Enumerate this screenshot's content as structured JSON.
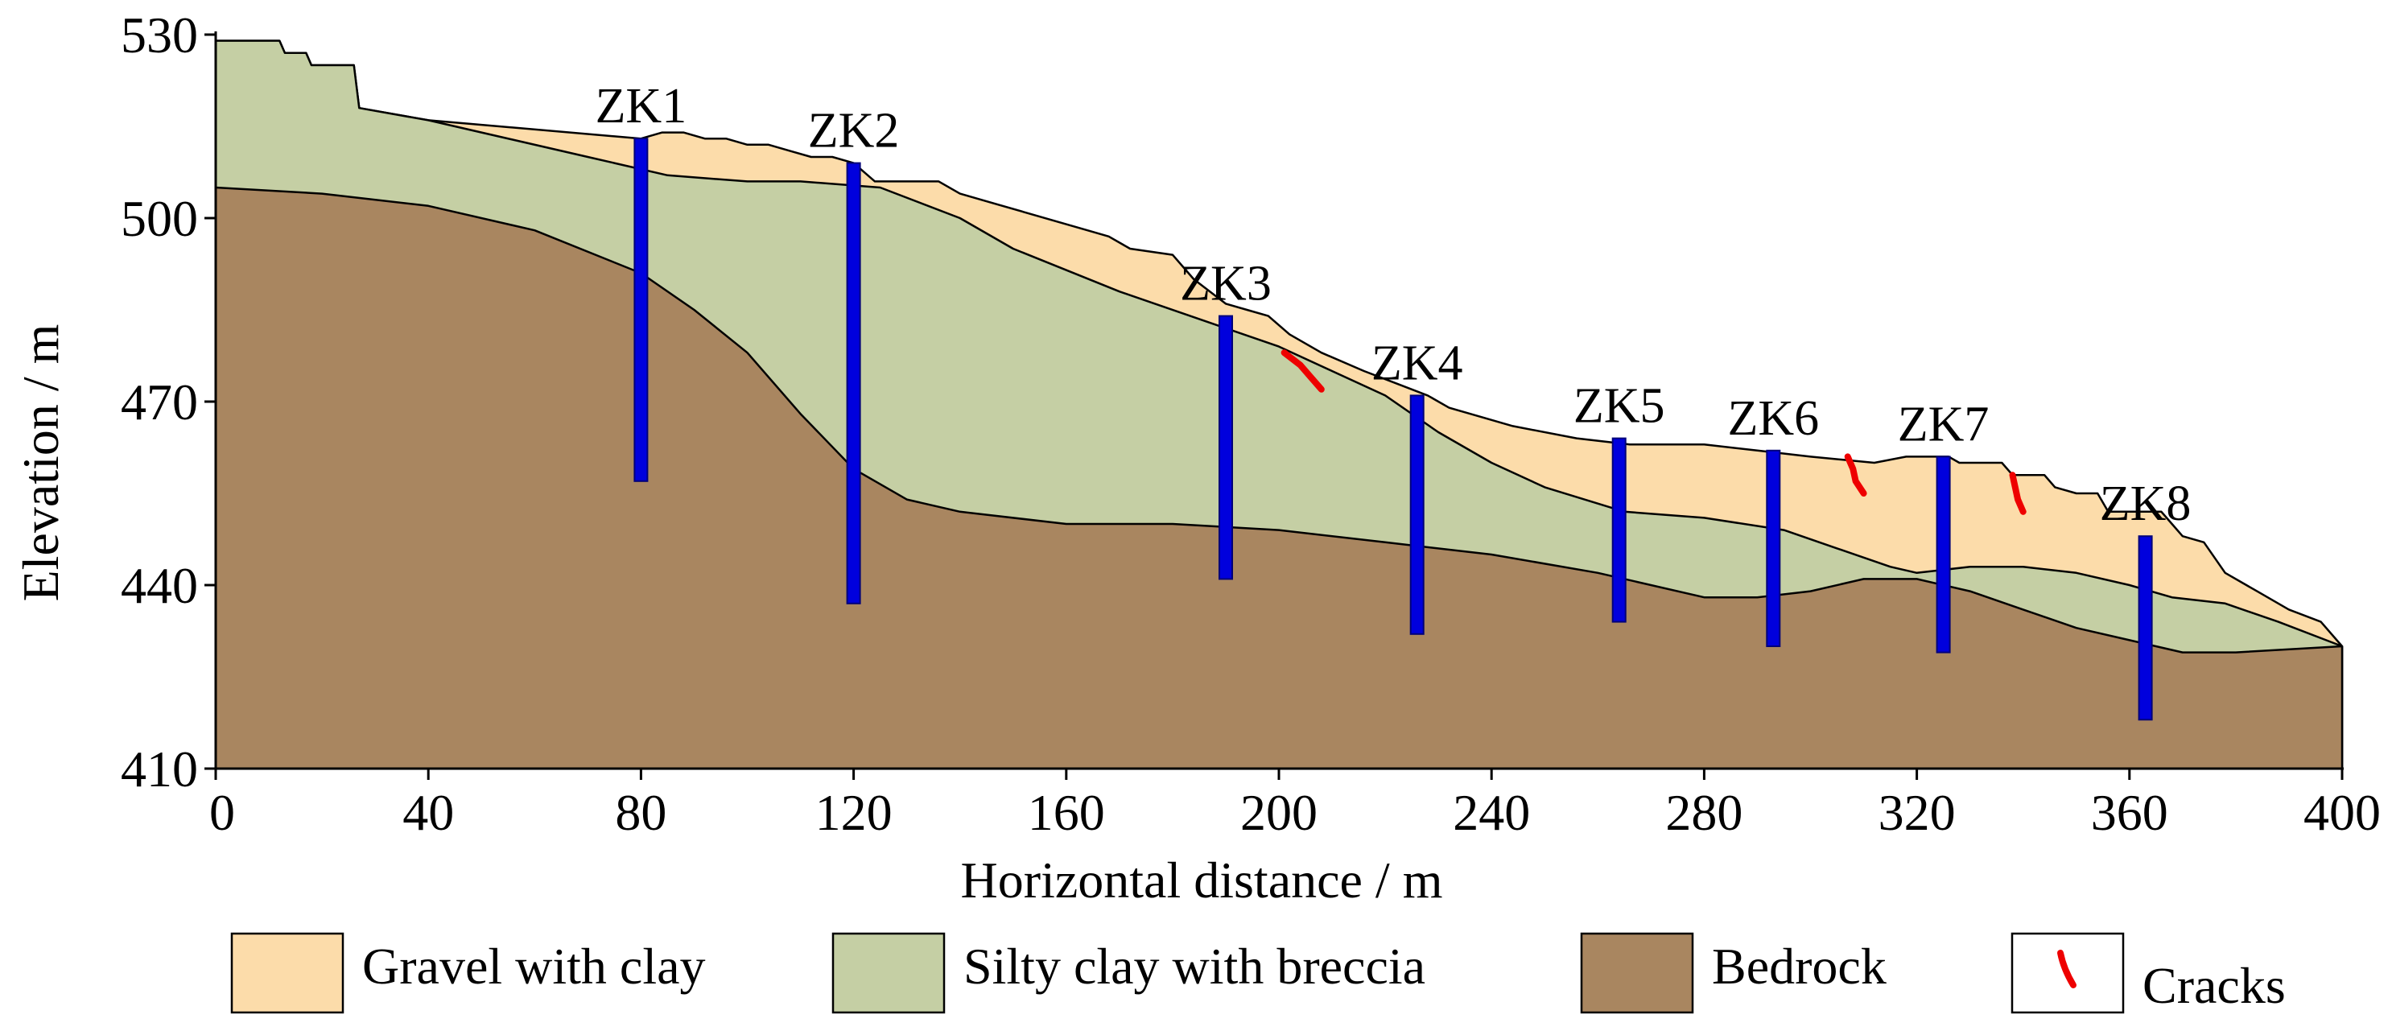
{
  "chart_data": {
    "type": "geological-cross-section",
    "xlabel": "Horizontal distance / m",
    "ylabel": "Elevation / m",
    "xlim": [
      0,
      400
    ],
    "ylim": [
      410,
      530
    ],
    "x_ticks": [
      0,
      40,
      80,
      120,
      160,
      200,
      240,
      280,
      320,
      360,
      400
    ],
    "y_ticks": [
      410,
      440,
      470,
      500,
      530
    ],
    "layers": [
      {
        "name": "Gravel with clay",
        "color": "#fcdcaa",
        "top": [
          [
            0,
            529
          ],
          [
            12,
            529
          ],
          [
            13,
            527
          ],
          [
            17,
            527
          ],
          [
            18,
            525
          ],
          [
            26,
            525
          ],
          [
            27,
            518
          ],
          [
            40,
            516
          ],
          [
            80,
            513
          ],
          [
            84,
            514
          ],
          [
            88,
            514
          ],
          [
            92,
            513
          ],
          [
            96,
            513
          ],
          [
            100,
            512
          ],
          [
            104,
            512
          ],
          [
            108,
            511
          ],
          [
            112,
            510
          ],
          [
            116,
            510
          ],
          [
            120,
            509
          ],
          [
            124,
            506
          ],
          [
            136,
            506
          ],
          [
            140,
            504
          ],
          [
            144,
            503
          ],
          [
            152,
            501
          ],
          [
            164,
            498
          ],
          [
            168,
            497
          ],
          [
            172,
            495
          ],
          [
            180,
            494
          ],
          [
            184,
            490
          ],
          [
            190,
            486
          ],
          [
            194,
            485
          ],
          [
            198,
            484
          ],
          [
            202,
            481
          ],
          [
            208,
            478
          ],
          [
            216,
            475
          ],
          [
            222,
            473
          ],
          [
            228,
            471
          ],
          [
            232,
            469
          ],
          [
            236,
            468
          ],
          [
            244,
            466
          ],
          [
            256,
            464
          ],
          [
            266,
            463
          ],
          [
            280,
            463
          ],
          [
            290,
            462
          ],
          [
            300,
            461
          ],
          [
            312,
            460
          ],
          [
            318,
            461
          ],
          [
            326,
            461
          ],
          [
            328,
            460
          ],
          [
            336,
            460
          ],
          [
            338,
            458
          ],
          [
            344,
            458
          ],
          [
            346,
            456
          ],
          [
            350,
            455
          ],
          [
            354,
            455
          ],
          [
            356,
            452
          ],
          [
            366,
            452
          ],
          [
            368,
            450
          ],
          [
            370,
            448
          ],
          [
            374,
            447
          ],
          [
            378,
            442
          ],
          [
            384,
            439
          ],
          [
            390,
            436
          ],
          [
            396,
            434
          ],
          [
            400,
            430
          ]
        ]
      },
      {
        "name": "Silty clay with breccia",
        "color": "#c5cfa4",
        "top": [
          [
            0,
            529
          ],
          [
            12,
            529
          ],
          [
            13,
            527
          ],
          [
            17,
            527
          ],
          [
            18,
            525
          ],
          [
            26,
            525
          ],
          [
            27,
            518
          ],
          [
            40,
            516
          ],
          [
            50,
            514
          ],
          [
            70,
            510
          ],
          [
            85,
            507
          ],
          [
            100,
            506
          ],
          [
            110,
            506
          ],
          [
            125,
            505
          ],
          [
            140,
            500
          ],
          [
            150,
            495
          ],
          [
            170,
            488
          ],
          [
            190,
            482
          ],
          [
            200,
            479
          ],
          [
            210,
            475
          ],
          [
            220,
            471
          ],
          [
            230,
            465
          ],
          [
            240,
            460
          ],
          [
            250,
            456
          ],
          [
            265,
            452
          ],
          [
            280,
            451
          ],
          [
            295,
            449
          ],
          [
            305,
            446
          ],
          [
            315,
            443
          ],
          [
            320,
            442
          ],
          [
            330,
            443
          ],
          [
            340,
            443
          ],
          [
            350,
            442
          ],
          [
            360,
            440
          ],
          [
            368,
            438
          ],
          [
            378,
            437
          ],
          [
            388,
            434
          ],
          [
            400,
            430
          ]
        ]
      },
      {
        "name": "Bedrock",
        "color": "#a98660",
        "top": [
          [
            0,
            505
          ],
          [
            20,
            504
          ],
          [
            40,
            502
          ],
          [
            60,
            498
          ],
          [
            80,
            491
          ],
          [
            90,
            485
          ],
          [
            100,
            478
          ],
          [
            110,
            468
          ],
          [
            120,
            459
          ],
          [
            130,
            454
          ],
          [
            140,
            452
          ],
          [
            160,
            450
          ],
          [
            180,
            450
          ],
          [
            200,
            449
          ],
          [
            220,
            447
          ],
          [
            240,
            445
          ],
          [
            260,
            442
          ],
          [
            280,
            438
          ],
          [
            290,
            438
          ],
          [
            300,
            439
          ],
          [
            310,
            441
          ],
          [
            320,
            441
          ],
          [
            330,
            439
          ],
          [
            340,
            436
          ],
          [
            350,
            433
          ],
          [
            360,
            431
          ],
          [
            370,
            429
          ],
          [
            380,
            429
          ],
          [
            400,
            430
          ]
        ]
      }
    ],
    "boreholes": [
      {
        "label": "ZK1",
        "x": 80,
        "top": 513,
        "bottom": 457
      },
      {
        "label": "ZK2",
        "x": 120,
        "top": 509,
        "bottom": 437
      },
      {
        "label": "ZK3",
        "x": 190,
        "top": 484,
        "bottom": 441
      },
      {
        "label": "ZK4",
        "x": 226,
        "top": 471,
        "bottom": 432
      },
      {
        "label": "ZK5",
        "x": 264,
        "top": 464,
        "bottom": 434
      },
      {
        "label": "ZK6",
        "x": 293,
        "top": 462,
        "bottom": 430
      },
      {
        "label": "ZK7",
        "x": 325,
        "top": 461,
        "bottom": 429
      },
      {
        "label": "ZK8",
        "x": 363,
        "top": 448,
        "bottom": 418
      }
    ],
    "cracks": [
      [
        [
          201,
          478
        ],
        [
          204,
          476
        ],
        [
          206,
          474
        ],
        [
          208,
          472
        ]
      ],
      [
        [
          307,
          461
        ],
        [
          308,
          459
        ],
        [
          308.5,
          457
        ],
        [
          310,
          455
        ]
      ],
      [
        [
          338,
          458
        ],
        [
          338.5,
          456
        ],
        [
          339,
          454
        ],
        [
          340,
          452
        ]
      ]
    ],
    "borehole_color": "#0000dd",
    "crack_color": "#ee0000",
    "legend": [
      {
        "label": "Gravel with clay",
        "kind": "fill",
        "color": "#fcdcaa"
      },
      {
        "label": "Silty clay with breccia",
        "kind": "fill",
        "color": "#c5cfa4"
      },
      {
        "label": "Bedrock",
        "kind": "fill",
        "color": "#a98660"
      },
      {
        "label": "Cracks",
        "kind": "crack",
        "color": "#ee0000"
      }
    ]
  }
}
